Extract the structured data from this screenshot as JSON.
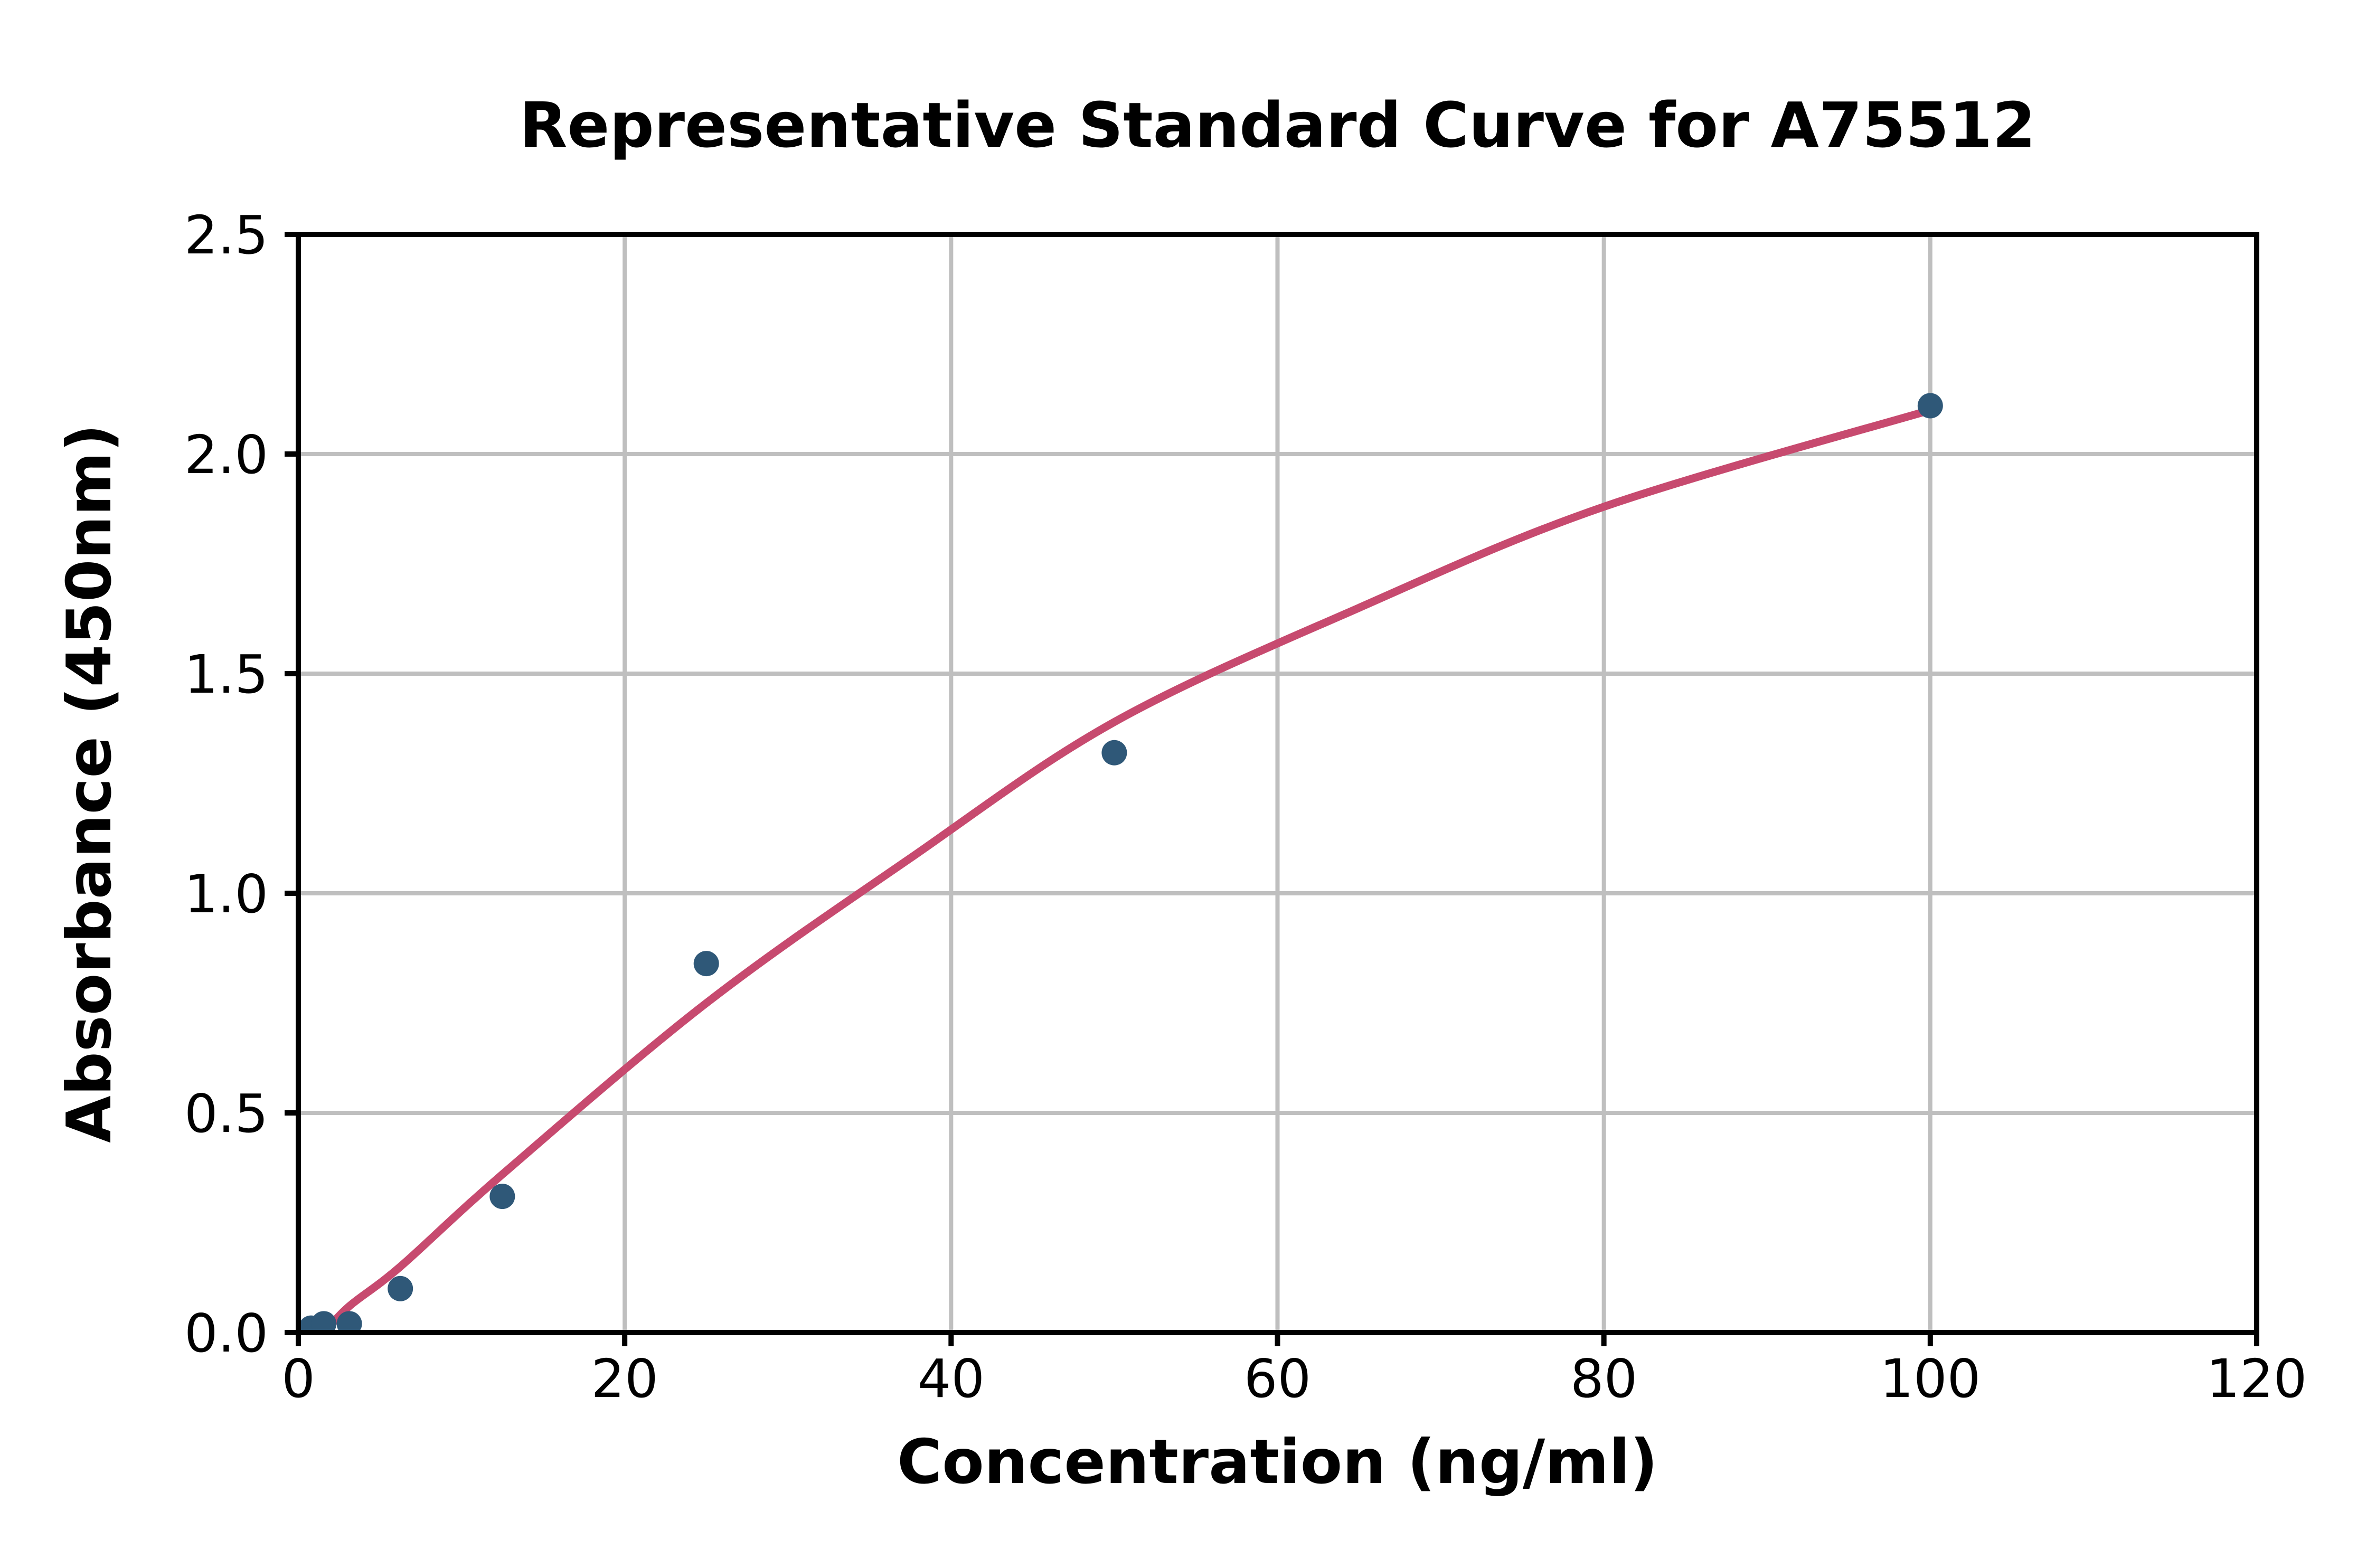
{
  "chart_data": {
    "type": "scatter",
    "title": "Representative Standard Curve for A75512",
    "xlabel": "Concentration (ng/ml)",
    "ylabel": "Absorbance (450nm)",
    "xlim": [
      0,
      120
    ],
    "ylim": [
      0.0,
      2.5
    ],
    "x_ticks": [
      0,
      20,
      40,
      60,
      80,
      100,
      120
    ],
    "x_tick_labels": [
      "0",
      "20",
      "40",
      "60",
      "80",
      "100",
      "120"
    ],
    "y_ticks": [
      0.0,
      0.5,
      1.0,
      1.5,
      2.0,
      2.5
    ],
    "y_tick_labels": [
      "0.0",
      "0.5",
      "1.0",
      "1.5",
      "2.0",
      "2.5"
    ],
    "grid": true,
    "legend": "none",
    "series": [
      {
        "name": "standard-points",
        "type": "scatter",
        "color": "#2F5878",
        "x": [
          0.78,
          1.56,
          3.125,
          6.25,
          12.5,
          25,
          50,
          100
        ],
        "y": [
          0.01,
          0.02,
          0.02,
          0.1,
          0.31,
          0.84,
          1.32,
          2.11
        ]
      },
      {
        "name": "fit-curve",
        "type": "line",
        "color": "#C74A6F",
        "points": [
          [
            1.6,
            0.0
          ],
          [
            3.125,
            0.06
          ],
          [
            6.25,
            0.15
          ],
          [
            12.5,
            0.36
          ],
          [
            25,
            0.75
          ],
          [
            37.5,
            1.08
          ],
          [
            50,
            1.39
          ],
          [
            65,
            1.65
          ],
          [
            80,
            1.88
          ],
          [
            100,
            2.1
          ]
        ]
      }
    ],
    "colors": {
      "grid": "#BFBFBF",
      "axis": "#000000",
      "text": "#000000",
      "background": "#FFFFFF"
    }
  }
}
